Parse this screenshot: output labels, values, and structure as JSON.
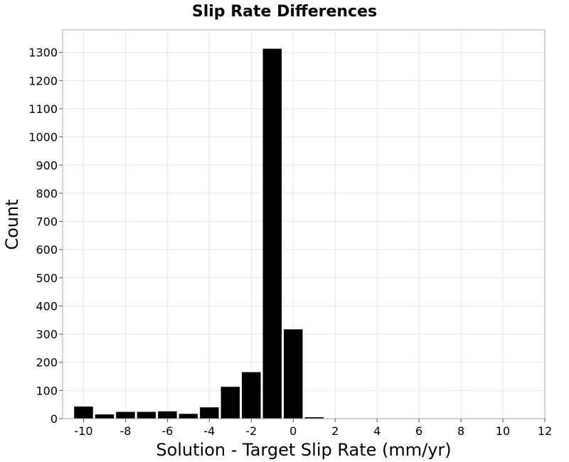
{
  "chart_data": {
    "type": "bar",
    "title": "Slip Rate Differences",
    "xlabel": "Solution - Target Slip Rate (mm/yr)",
    "ylabel": "Count",
    "xlim": [
      -11,
      12
    ],
    "ylim": [
      0,
      1380
    ],
    "grid": true,
    "legend": "none",
    "bar_color": "#000000",
    "bin_width": 1,
    "x_ticks": [
      -10,
      -8,
      -6,
      -4,
      -2,
      0,
      2,
      4,
      6,
      8,
      10,
      12
    ],
    "y_ticks": [
      0,
      100,
      200,
      300,
      400,
      500,
      600,
      700,
      800,
      900,
      1000,
      1100,
      1200,
      1300
    ],
    "bins": [
      {
        "x": -10,
        "value": 43
      },
      {
        "x": -9,
        "value": 15
      },
      {
        "x": -8,
        "value": 24
      },
      {
        "x": -7,
        "value": 24
      },
      {
        "x": -6,
        "value": 26
      },
      {
        "x": -5,
        "value": 17
      },
      {
        "x": -4,
        "value": 40
      },
      {
        "x": -3,
        "value": 113
      },
      {
        "x": -2,
        "value": 165
      },
      {
        "x": -1,
        "value": 1313
      },
      {
        "x": 0,
        "value": 317
      },
      {
        "x": 1,
        "value": 5
      }
    ]
  }
}
